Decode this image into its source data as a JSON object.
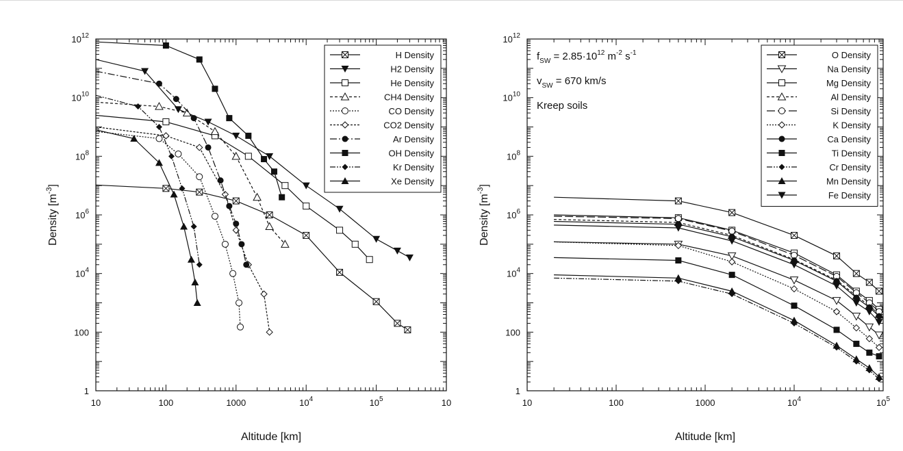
{
  "chart_data": [
    {
      "type": "line",
      "panel": "left",
      "xlabel": "Altitude [km]",
      "ylabel": "Density [m",
      "ylabel_sup": "-3",
      "ylabel_close": "]",
      "xscale": "log",
      "yscale": "log",
      "xlim": [
        10,
        1000000
      ],
      "ylim": [
        1,
        1000000000000
      ],
      "x_ticks": [
        {
          "v": 10,
          "base": "10",
          "sup": ""
        },
        {
          "v": 100,
          "base": "100",
          "sup": ""
        },
        {
          "v": 1000,
          "base": "1000",
          "sup": ""
        },
        {
          "v": 10000,
          "base": "10",
          "sup": "4"
        },
        {
          "v": 100000,
          "base": "10",
          "sup": "5"
        },
        {
          "v": 1000000,
          "base": "10",
          "sup": ""
        }
      ],
      "y_ticks": [
        {
          "v": 1,
          "base": "1",
          "sup": ""
        },
        {
          "v": 100,
          "base": "100",
          "sup": ""
        },
        {
          "v": 10000,
          "base": "10",
          "sup": "4"
        },
        {
          "v": 1000000,
          "base": "10",
          "sup": "6"
        },
        {
          "v": 100000000,
          "base": "10",
          "sup": "8"
        },
        {
          "v": 10000000000,
          "base": "10",
          "sup": "10"
        },
        {
          "v": 1000000000000,
          "base": "10",
          "sup": "12"
        }
      ],
      "legend_position": "top-right",
      "series": [
        {
          "name": "H Density",
          "marker": "squarex",
          "dash": "",
          "x": [
            10,
            100,
            300,
            1000,
            3000,
            10000,
            30000,
            100000,
            200000,
            280000
          ],
          "y": [
            10500000,
            8000000,
            6000000,
            3000000,
            1000000,
            200000,
            11000,
            1100,
            200,
            120
          ]
        },
        {
          "name": "H2 Density",
          "marker": "tri-down",
          "dash": "",
          "x": [
            10,
            50,
            150,
            400,
            1000,
            3000,
            10000,
            30000,
            100000,
            200000,
            300000
          ],
          "y": [
            200000000000,
            80000000000,
            4000000000,
            1500000000,
            500000000,
            100000000,
            10000000,
            1600000,
            150000,
            60000,
            35000
          ]
        },
        {
          "name": "He Density",
          "marker": "square-open",
          "dash": "",
          "x": [
            10,
            100,
            500,
            1500,
            5000,
            10000,
            30000,
            50000,
            80000
          ],
          "y": [
            2500000000,
            1500000000,
            500000000,
            100000000,
            10000000,
            2000000,
            300000,
            100000,
            30000
          ]
        },
        {
          "name": "CH4 Density",
          "marker": "tri-up-open",
          "dash": "4,3",
          "x": [
            10,
            80,
            200,
            500,
            1000,
            2000,
            3000,
            5000
          ],
          "y": [
            7000000000,
            5000000000,
            3000000000,
            700000000,
            100000000,
            4000000,
            400000,
            100000
          ]
        },
        {
          "name": "CO Density",
          "marker": "circle-open",
          "dash": "2,2",
          "x": [
            10,
            80,
            150,
            300,
            500,
            700,
            900,
            1100,
            1150
          ],
          "y": [
            700000000,
            400000000,
            120000000,
            20000000,
            900000,
            100000,
            10000,
            1000,
            150
          ]
        },
        {
          "name": "CO2 Density",
          "marker": "diamond-open",
          "dash": "3,2",
          "x": [
            10,
            100,
            300,
            700,
            1000,
            1500,
            2500,
            3000
          ],
          "y": [
            1000000000,
            500000000,
            200000000,
            5000000,
            300000,
            20000,
            2000,
            100
          ]
        },
        {
          "name": "Ar Density",
          "marker": "circle",
          "dash": "10,3,2,3",
          "x": [
            10,
            80,
            140,
            250,
            400,
            600,
            800,
            1000,
            1200,
            1400
          ],
          "y": [
            80000000000,
            30000000000,
            9000000000,
            2000000000,
            200000000,
            15000000,
            2000000,
            500000,
            100000,
            20000
          ]
        },
        {
          "name": "OH Density",
          "marker": "square",
          "dash": "",
          "x": [
            10,
            100,
            300,
            500,
            800,
            1500,
            2500,
            3500,
            4500
          ],
          "y": [
            800000000000,
            600000000000,
            200000000000,
            20000000000,
            2000000000,
            500000000,
            80000000,
            30000000,
            4000000
          ]
        },
        {
          "name": "Kr Density",
          "marker": "diamond",
          "dash": "8,2,2,2,2,2",
          "x": [
            10,
            40,
            80,
            120,
            170,
            250,
            300
          ],
          "y": [
            12000000000,
            5000000000,
            1000000000,
            100000000,
            8000000,
            400000,
            20000
          ]
        },
        {
          "name": "Xe Density",
          "marker": "tri-up",
          "dash": "",
          "x": [
            10,
            35,
            80,
            130,
            180,
            230,
            260,
            280
          ],
          "y": [
            800000000,
            400000000,
            60000000,
            5000000,
            400000,
            30000,
            5000,
            1000
          ]
        }
      ]
    },
    {
      "type": "line",
      "panel": "right",
      "xlabel": "Altitude [km]",
      "ylabel": "Density [m",
      "ylabel_sup": "-3",
      "ylabel_close": "]",
      "xscale": "log",
      "yscale": "log",
      "xlim": [
        10,
        100000
      ],
      "ylim": [
        1,
        1000000000000
      ],
      "x_ticks": [
        {
          "v": 10,
          "base": "10",
          "sup": ""
        },
        {
          "v": 100,
          "base": "100",
          "sup": ""
        },
        {
          "v": 1000,
          "base": "1000",
          "sup": ""
        },
        {
          "v": 10000,
          "base": "10",
          "sup": "4"
        },
        {
          "v": 100000,
          "base": "10",
          "sup": "5"
        }
      ],
      "y_ticks": [
        {
          "v": 1,
          "base": "1",
          "sup": ""
        },
        {
          "v": 100,
          "base": "100",
          "sup": ""
        },
        {
          "v": 10000,
          "base": "10",
          "sup": "4"
        },
        {
          "v": 1000000,
          "base": "10",
          "sup": "6"
        },
        {
          "v": 100000000,
          "base": "10",
          "sup": "8"
        },
        {
          "v": 10000000000,
          "base": "10",
          "sup": "10"
        },
        {
          "v": 1000000000000,
          "base": "10",
          "sup": "12"
        }
      ],
      "annotations": {
        "line1": {
          "main": "f",
          "sub": "SW",
          "mid": " = 2.85·10",
          "sup1": "12",
          "mid2": " m",
          "sup2": "-2",
          "mid3": " s",
          "sup3": "-1"
        },
        "line2": {
          "main": "v",
          "sub": "SW",
          "mid": " = 670 km/s"
        },
        "line3": "Kreep soils"
      },
      "legend_position": "top-right",
      "series": [
        {
          "name": "O Density",
          "marker": "squarex",
          "dash": "",
          "x": [
            20,
            500,
            2000,
            10000,
            30000,
            50000,
            70000,
            90000
          ],
          "y": [
            4000000,
            3000000,
            1200000,
            200000,
            40000,
            10000,
            5000,
            2500
          ]
        },
        {
          "name": "Na Density",
          "marker": "tri-down-open",
          "dash": "",
          "x": [
            20,
            500,
            2000,
            10000,
            30000,
            50000,
            70000,
            90000
          ],
          "y": [
            120000,
            100000,
            40000,
            6000,
            1200,
            350,
            150,
            80
          ]
        },
        {
          "name": "Mg Density",
          "marker": "square-open",
          "dash": "",
          "x": [
            20,
            500,
            2000,
            10000,
            30000,
            50000,
            70000,
            90000
          ],
          "y": [
            1000000,
            800000,
            300000,
            50000,
            9000,
            2500,
            1200,
            600
          ]
        },
        {
          "name": "Al Density",
          "marker": "tri-up-open",
          "dash": "4,3",
          "x": [
            20,
            500,
            2000,
            10000,
            30000,
            50000,
            70000,
            90000
          ],
          "y": [
            700000,
            550000,
            200000,
            30000,
            6000,
            1700,
            800,
            400
          ]
        },
        {
          "name": "Si Density",
          "marker": "circle-open",
          "dash": "12,4",
          "x": [
            20,
            500,
            2000,
            10000,
            30000,
            50000,
            70000,
            90000
          ],
          "y": [
            900000,
            750000,
            280000,
            42000,
            8000,
            2200,
            1000,
            500
          ]
        },
        {
          "name": "K Density",
          "marker": "diamond-open",
          "dash": "2,2",
          "x": [
            20,
            500,
            2000,
            10000,
            30000,
            50000,
            70000,
            90000
          ],
          "y": [
            120000,
            90000,
            25000,
            3000,
            500,
            140,
            60,
            30
          ]
        },
        {
          "name": "Ca Density",
          "marker": "circle",
          "dash": "",
          "x": [
            20,
            500,
            2000,
            10000,
            30000,
            50000,
            70000,
            90000
          ],
          "y": [
            600000,
            480000,
            180000,
            28000,
            5500,
            1500,
            700,
            350
          ]
        },
        {
          "name": "Ti Density",
          "marker": "square",
          "dash": "",
          "x": [
            20,
            500,
            2000,
            10000,
            30000,
            50000,
            70000,
            90000
          ],
          "y": [
            35000,
            28000,
            9000,
            800,
            120,
            40,
            20,
            15
          ]
        },
        {
          "name": "Cr Density",
          "marker": "diamond",
          "dash": "8,2,2,2,2,2",
          "x": [
            20,
            500,
            2000,
            10000,
            30000,
            50000,
            70000,
            90000
          ],
          "y": [
            7000,
            5500,
            2000,
            200,
            30,
            10,
            5,
            2.5
          ]
        },
        {
          "name": "Mn Density",
          "marker": "tri-up",
          "dash": "",
          "x": [
            20,
            500,
            2000,
            10000,
            30000,
            50000,
            70000,
            90000
          ],
          "y": [
            9000,
            7000,
            2500,
            250,
            35,
            12,
            6,
            3
          ]
        },
        {
          "name": "Fe Density",
          "marker": "tri-down",
          "dash": "",
          "x": [
            20,
            500,
            2000,
            10000,
            30000,
            50000,
            70000,
            90000
          ],
          "y": [
            450000,
            360000,
            130000,
            20000,
            3800,
            1000,
            500,
            220
          ]
        }
      ]
    }
  ]
}
